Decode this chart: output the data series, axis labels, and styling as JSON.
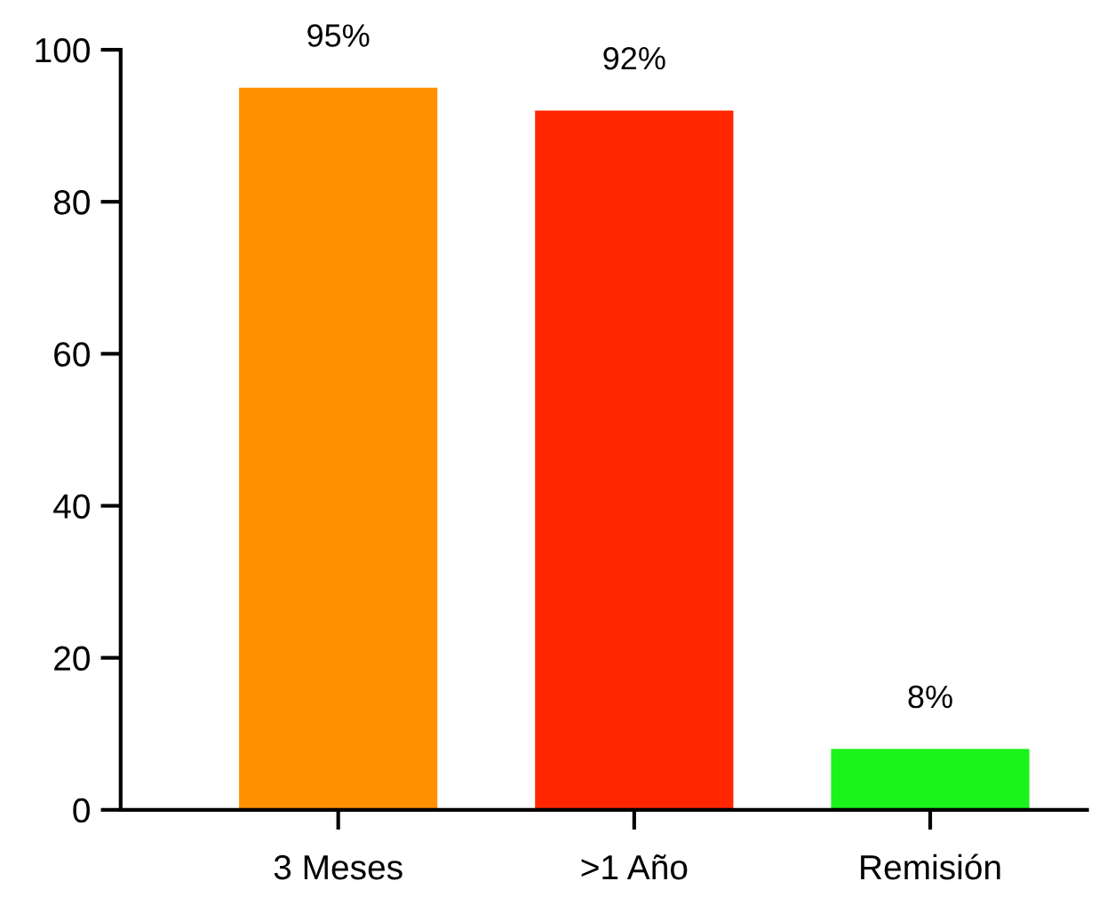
{
  "chart_data": {
    "type": "bar",
    "categories": [
      "3 Meses",
      ">1 Año",
      "Remisión"
    ],
    "values": [
      95,
      92,
      8
    ],
    "colors": [
      "#ff9100",
      "#ff2600",
      "#1cf21c"
    ],
    "value_labels": [
      "95%",
      "92%",
      "8%"
    ],
    "ylim": [
      0,
      100
    ],
    "yticks": [
      0,
      20,
      40,
      60,
      80,
      100
    ],
    "grid": false,
    "legend": false
  }
}
